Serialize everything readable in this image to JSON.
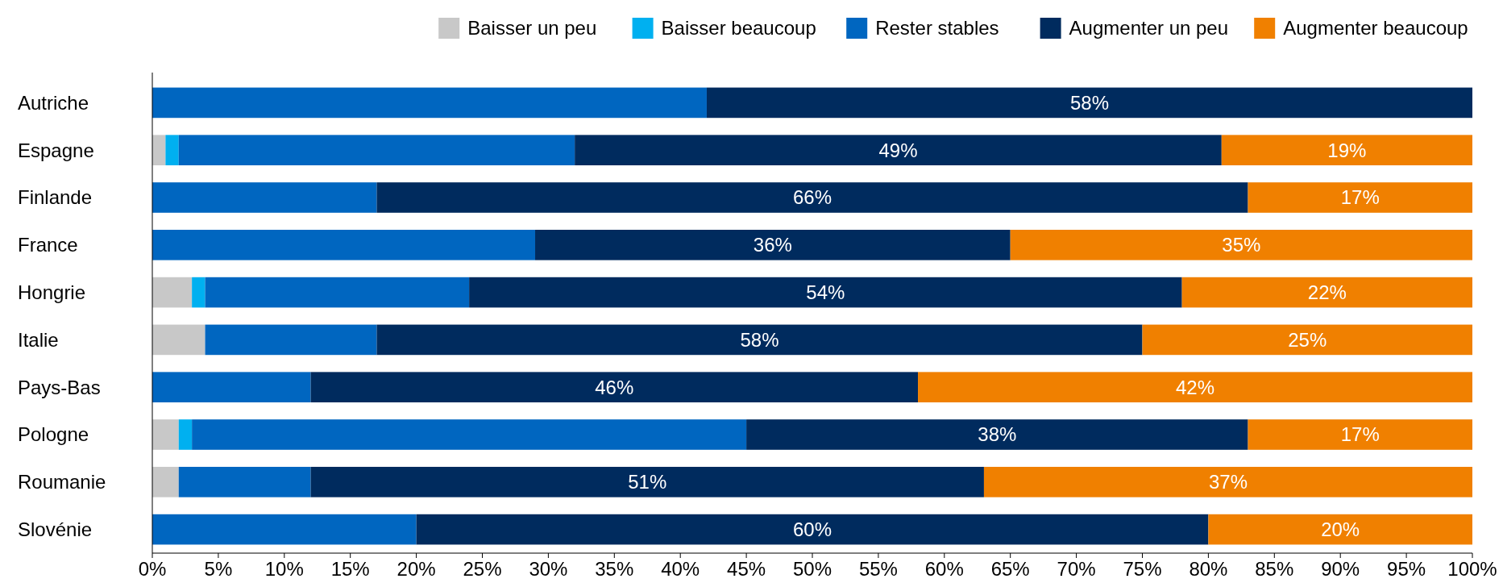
{
  "chart_data": {
    "type": "bar",
    "orientation": "horizontal",
    "stacked": true,
    "legend": "top right",
    "categories": [
      "Autriche",
      "Espagne",
      "Finlande",
      "France",
      "Hongrie",
      "Italie",
      "Pays-Bas",
      "Pologne",
      "Roumanie",
      "Slovénie"
    ],
    "series": [
      {
        "name": "Baisser un peu",
        "color": "#c8c8c8",
        "values": [
          null,
          1,
          null,
          null,
          3,
          4,
          null,
          2,
          2,
          null
        ]
      },
      {
        "name": "Baisser beaucoup",
        "color": "#00b0f0",
        "values": [
          null,
          1,
          null,
          null,
          1,
          null,
          null,
          1,
          null,
          null
        ]
      },
      {
        "name": "Rester stables",
        "color": "#0066c0",
        "values": [
          42,
          30,
          17,
          29,
          20,
          13,
          12,
          42,
          10,
          20
        ]
      },
      {
        "name": "Augmenter un peu",
        "color": "#002b5e",
        "values": [
          58,
          49,
          66,
          36,
          54,
          58,
          46,
          38,
          51,
          60
        ],
        "value_labels": [
          "58%",
          "49%",
          "66%",
          "36%",
          "54%",
          "58%",
          "46%",
          "38%",
          "51%",
          "60%"
        ]
      },
      {
        "name": "Augmenter beaucoup",
        "color": "#f08000",
        "values": [
          null,
          19,
          17,
          35,
          22,
          25,
          42,
          17,
          37,
          20
        ],
        "value_labels": [
          null,
          "19%",
          "17%",
          "35%",
          "22%",
          "25%",
          "42%",
          "17%",
          "37%",
          "20%"
        ]
      }
    ],
    "xlim": [
      0,
      100
    ],
    "xticks": [
      {
        "value": 0,
        "label": "0%"
      },
      {
        "value": 5,
        "label": "5%"
      },
      {
        "value": 10,
        "label": "10%"
      },
      {
        "value": 15,
        "label": "15%"
      },
      {
        "value": 20,
        "label": "20%"
      },
      {
        "value": 25,
        "label": "25%"
      },
      {
        "value": 30,
        "label": "30%"
      },
      {
        "value": 35,
        "label": "35%"
      },
      {
        "value": 40,
        "label": "40%"
      },
      {
        "value": 45,
        "label": "45%"
      },
      {
        "value": 50,
        "label": "50%"
      },
      {
        "value": 55,
        "label": "55%"
      },
      {
        "value": 60,
        "label": "60%"
      },
      {
        "value": 65,
        "label": "65%"
      },
      {
        "value": 70,
        "label": "70%"
      },
      {
        "value": 75,
        "label": "75%"
      },
      {
        "value": 80,
        "label": "80%"
      },
      {
        "value": 85,
        "label": "85%"
      },
      {
        "value": 90,
        "label": "90%"
      },
      {
        "value": 95,
        "label": "95%"
      },
      {
        "value": 100,
        "label": "100%"
      }
    ]
  }
}
